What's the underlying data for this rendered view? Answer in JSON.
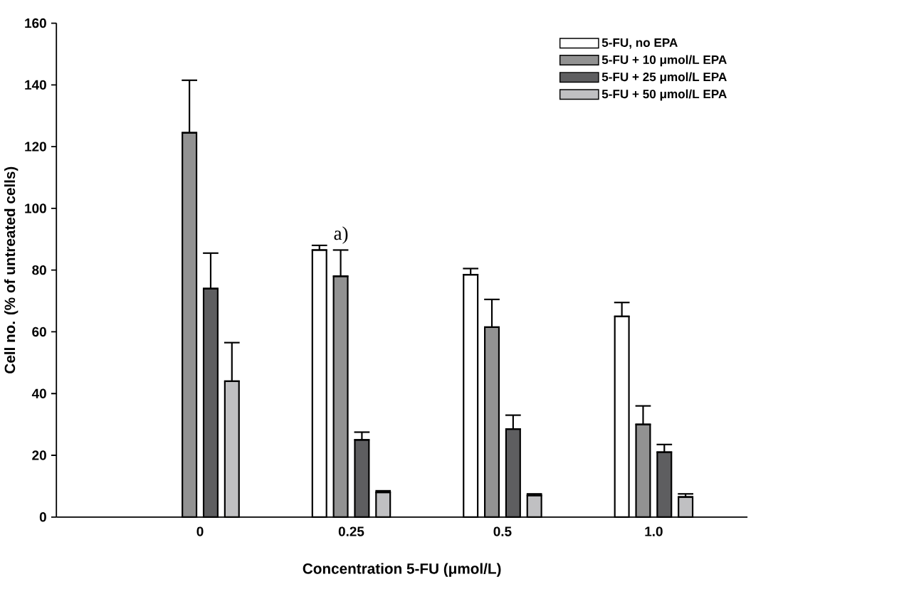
{
  "chart_data": {
    "type": "bar",
    "xlabel": "Concentration 5-FU (μmol/L)",
    "ylabel": "Cell no. (% of untreated cells)",
    "categories": [
      "0",
      "0.25",
      "0.5",
      "1.0"
    ],
    "series": [
      {
        "name": "5-FU, no EPA",
        "color": "#ffffff",
        "values": [
          null,
          86.5,
          78.5,
          65
        ],
        "errors": [
          null,
          [
            86.5,
            88
          ],
          [
            78.5,
            80.5
          ],
          [
            65,
            69.5
          ]
        ]
      },
      {
        "name": "5-FU + 10 μmol/L EPA",
        "color": "#929292",
        "values": [
          124.5,
          78,
          61.5,
          30
        ],
        "errors": [
          [
            124.5,
            141.5
          ],
          [
            78,
            86.5
          ],
          [
            61.5,
            70.5
          ],
          [
            30,
            36
          ]
        ]
      },
      {
        "name": "5-FU + 25 μmol/L EPA",
        "color": "#5e5e60",
        "values": [
          74,
          25,
          28.5,
          21
        ],
        "errors": [
          [
            74,
            85.5
          ],
          [
            25,
            27.5
          ],
          [
            28.5,
            33
          ],
          [
            21,
            23.5
          ]
        ]
      },
      {
        "name": "5-FU + 50 μmol/L EPA",
        "color": "#c0c0c2",
        "values": [
          44,
          8,
          7,
          6.5
        ],
        "errors": [
          [
            44,
            56.5
          ],
          [
            8,
            8.5
          ],
          [
            7,
            7.5
          ],
          [
            6.5,
            7.5
          ]
        ]
      }
    ],
    "annotations": [
      {
        "text": "a)",
        "x": "0.25",
        "y": 88
      }
    ],
    "ylim": [
      0,
      160
    ],
    "yticks": [
      0,
      20,
      40,
      60,
      80,
      100,
      120,
      140,
      160
    ],
    "legend": "top right",
    "grid": false
  }
}
